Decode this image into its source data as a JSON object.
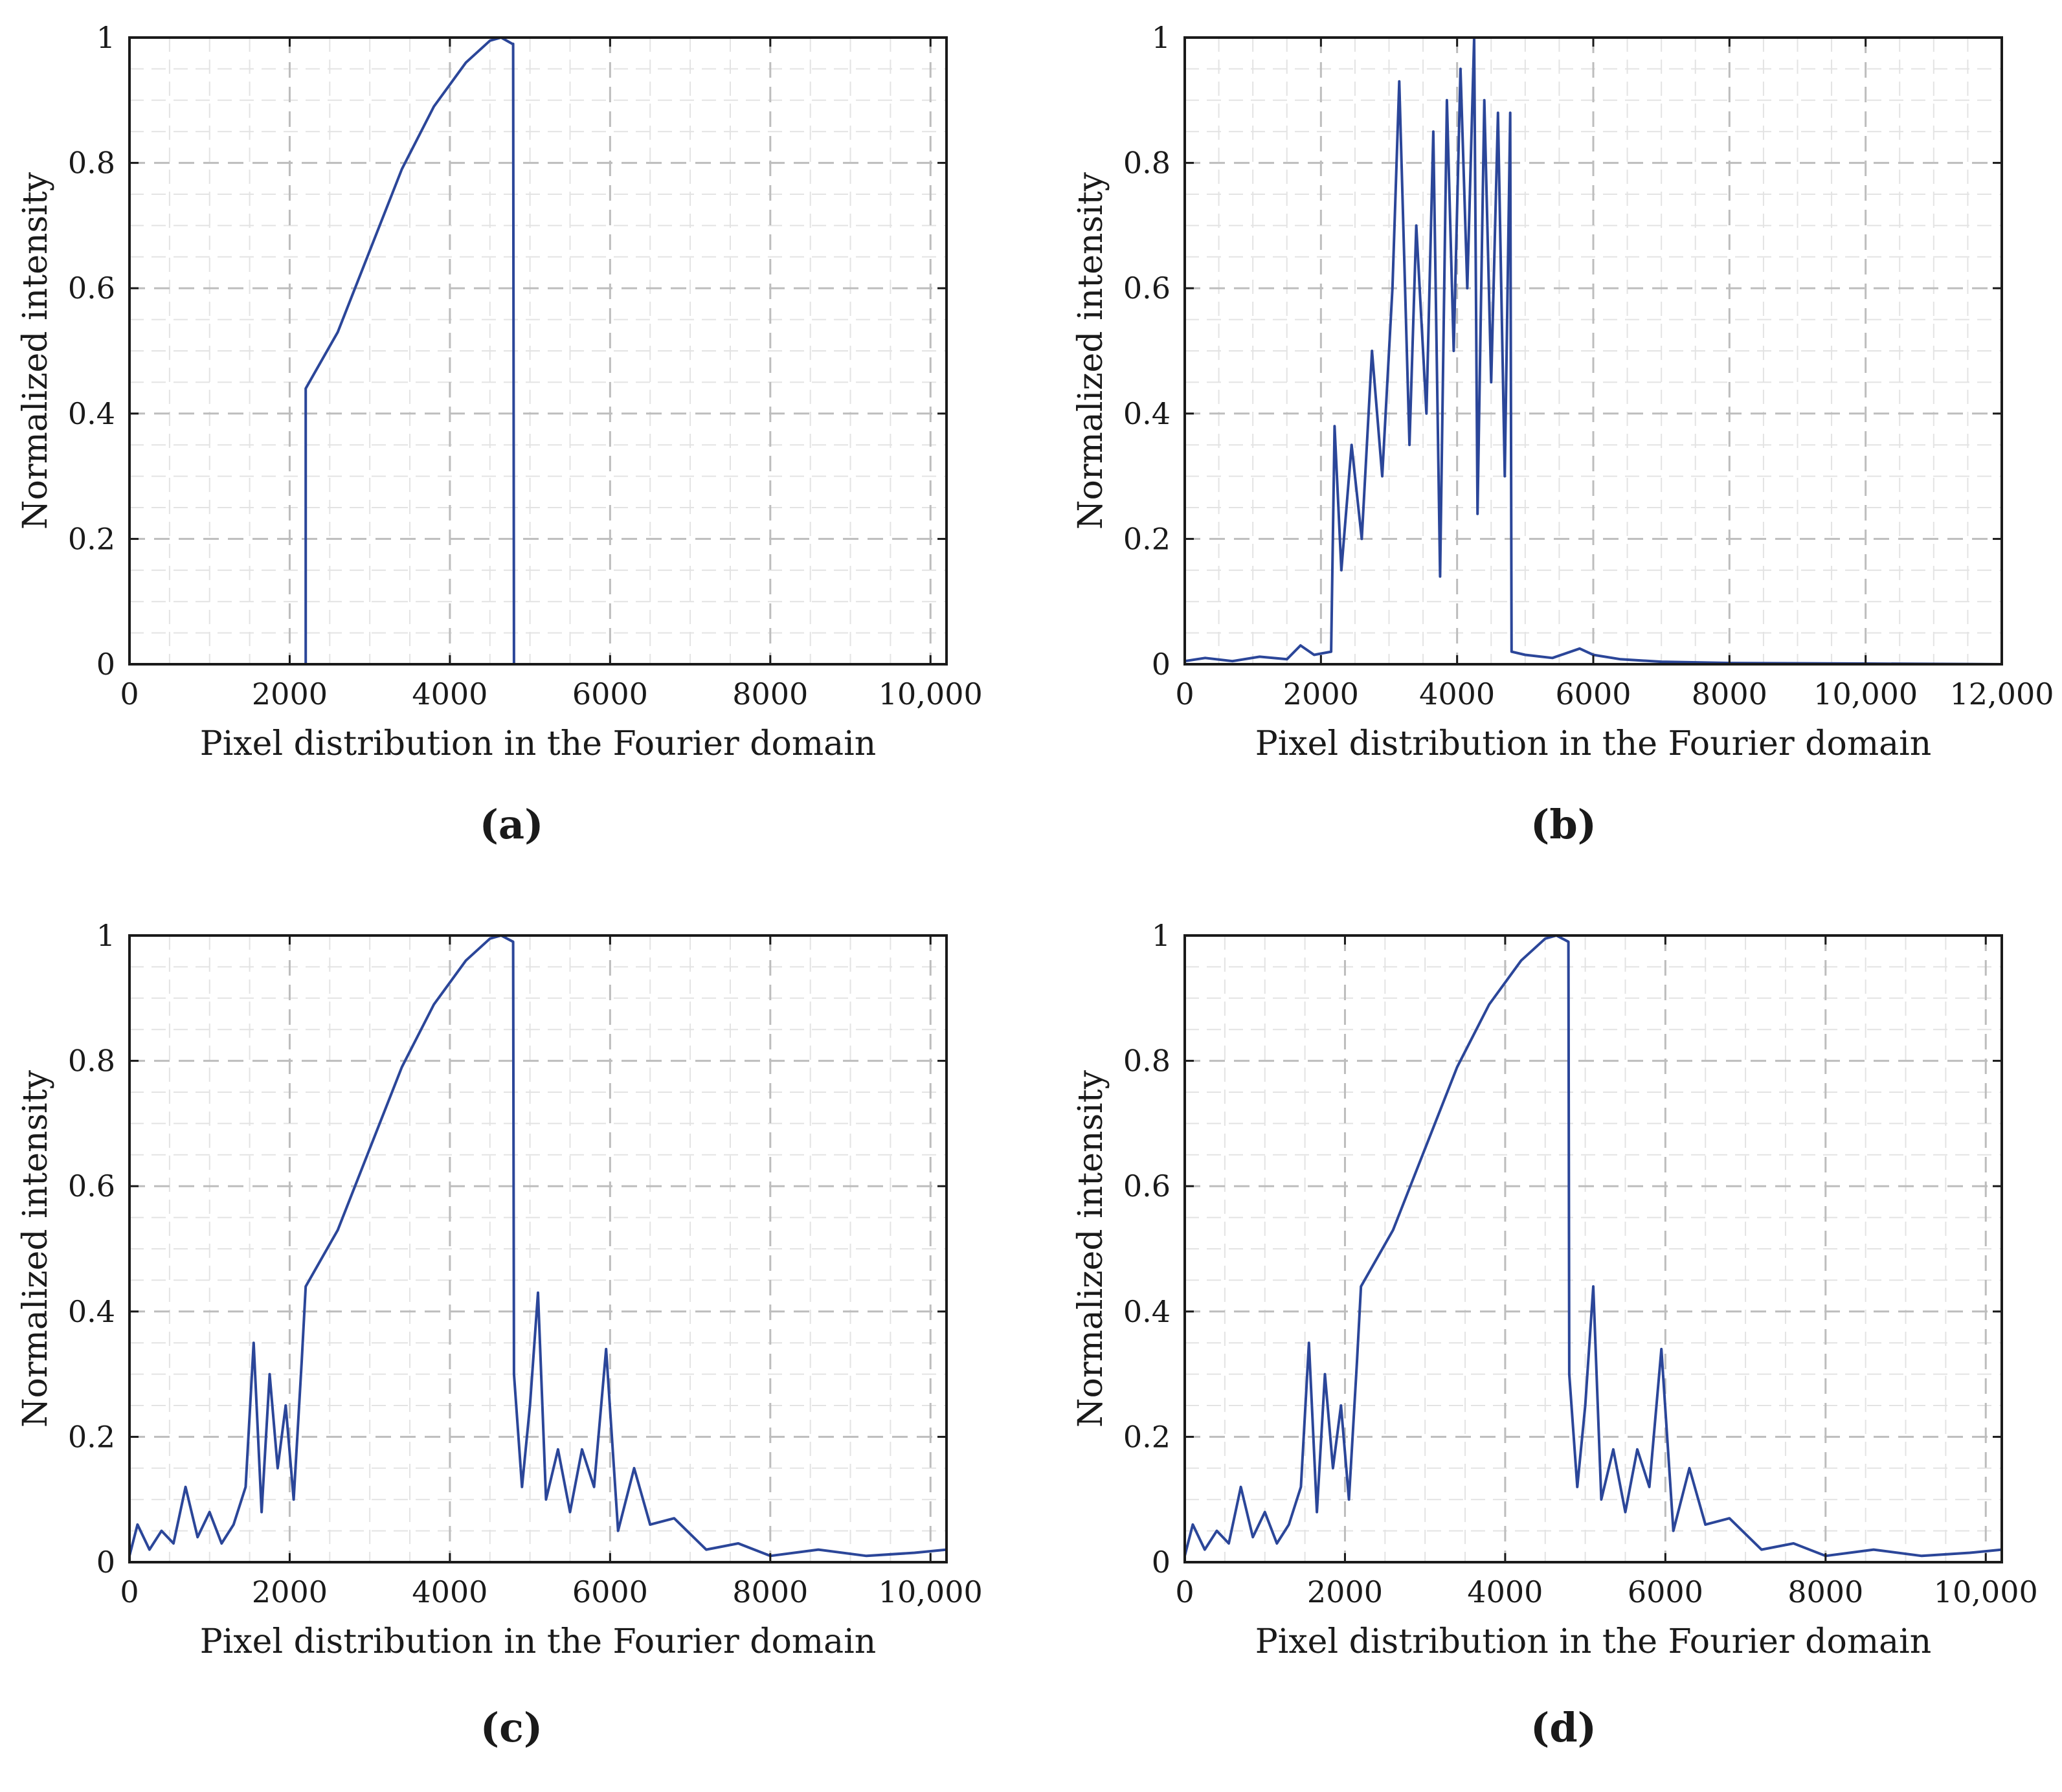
{
  "chart_data": [
    {
      "type": "line",
      "panel_label": "(a)",
      "title": "",
      "xlabel": "Pixel distribution in the Fourier domain",
      "ylabel": "Normalized intensity",
      "xlim": [
        0,
        10200
      ],
      "ylim": [
        0,
        1
      ],
      "xticks": [
        0,
        2000,
        4000,
        6000,
        8000,
        10000
      ],
      "xtick_labels": [
        "0",
        "2000",
        "4000",
        "6000",
        "8000",
        "10,000"
      ],
      "yticks": [
        0,
        0.2,
        0.4,
        0.6,
        0.8,
        1
      ],
      "ytick_labels": [
        "0",
        "0.2",
        "0.4",
        "0.6",
        "0.8",
        "1"
      ],
      "grid": true,
      "color": "#2b4699",
      "series": [
        {
          "name": "intensity",
          "x": [
            0,
            2180,
            2200,
            2200,
            2600,
            3000,
            3400,
            3800,
            4200,
            4500,
            4640,
            4780,
            4790,
            4800,
            10200
          ],
          "y": [
            0,
            0,
            0,
            0.44,
            0.53,
            0.66,
            0.79,
            0.89,
            0.96,
            0.995,
            1.0,
            0.99,
            0.99,
            0,
            0
          ]
        }
      ]
    },
    {
      "type": "line",
      "panel_label": "(b)",
      "title": "",
      "xlabel": "Pixel distribution in the Fourier domain",
      "ylabel": "Normalized intensity",
      "xlim": [
        0,
        12000
      ],
      "ylim": [
        0,
        1
      ],
      "xticks": [
        0,
        2000,
        4000,
        6000,
        8000,
        10000,
        12000
      ],
      "xtick_labels": [
        "0",
        "2000",
        "4000",
        "6000",
        "8000",
        "10,000",
        "12,000"
      ],
      "yticks": [
        0,
        0.2,
        0.4,
        0.6,
        0.8,
        1
      ],
      "ytick_labels": [
        "0",
        "0.2",
        "0.4",
        "0.6",
        "0.8",
        "1"
      ],
      "grid": true,
      "color": "#2b4699",
      "series": [
        {
          "name": "intensity",
          "x": [
            0,
            300,
            700,
            1100,
            1500,
            1700,
            1900,
            2150,
            2200,
            2300,
            2450,
            2600,
            2750,
            2900,
            3050,
            3150,
            3300,
            3400,
            3550,
            3650,
            3750,
            3850,
            3950,
            4050,
            4150,
            4250,
            4300,
            4400,
            4500,
            4600,
            4700,
            4780,
            4800,
            5000,
            5400,
            5800,
            6000,
            6400,
            7000,
            8000,
            10000,
            12000
          ],
          "y": [
            0.005,
            0.01,
            0.005,
            0.012,
            0.008,
            0.03,
            0.015,
            0.02,
            0.38,
            0.15,
            0.35,
            0.2,
            0.5,
            0.3,
            0.6,
            0.93,
            0.35,
            0.7,
            0.4,
            0.85,
            0.14,
            0.9,
            0.5,
            0.95,
            0.6,
            1.0,
            0.24,
            0.9,
            0.45,
            0.88,
            0.3,
            0.88,
            0.02,
            0.015,
            0.01,
            0.025,
            0.015,
            0.008,
            0.004,
            0.002,
            0.001,
            0.0
          ]
        }
      ]
    },
    {
      "type": "line",
      "panel_label": "(c)",
      "title": "",
      "xlabel": "Pixel distribution in the Fourier domain",
      "ylabel": "Normalized intensity",
      "xlim": [
        0,
        10200
      ],
      "ylim": [
        0,
        1
      ],
      "xticks": [
        0,
        2000,
        4000,
        6000,
        8000,
        10000
      ],
      "xtick_labels": [
        "0",
        "2000",
        "4000",
        "6000",
        "8000",
        "10,000"
      ],
      "yticks": [
        0,
        0.2,
        0.4,
        0.6,
        0.8,
        1
      ],
      "ytick_labels": [
        "0",
        "0.2",
        "0.4",
        "0.6",
        "0.8",
        "1"
      ],
      "grid": true,
      "color": "#2b4699",
      "series": [
        {
          "name": "intensity",
          "x": [
            0,
            100,
            250,
            400,
            550,
            700,
            850,
            1000,
            1150,
            1300,
            1450,
            1550,
            1650,
            1750,
            1850,
            1950,
            2050,
            2150,
            2200,
            2600,
            3000,
            3400,
            3800,
            4200,
            4500,
            4640,
            4790,
            4800,
            4900,
            5000,
            5100,
            5200,
            5350,
            5500,
            5650,
            5800,
            5950,
            6100,
            6300,
            6500,
            6800,
            7200,
            7600,
            8000,
            8600,
            9200,
            9800,
            10200
          ],
          "y": [
            0.01,
            0.06,
            0.02,
            0.05,
            0.03,
            0.12,
            0.04,
            0.08,
            0.03,
            0.06,
            0.12,
            0.35,
            0.08,
            0.3,
            0.15,
            0.25,
            0.1,
            0.32,
            0.44,
            0.53,
            0.66,
            0.79,
            0.89,
            0.96,
            0.995,
            1.0,
            0.99,
            0.3,
            0.12,
            0.25,
            0.43,
            0.1,
            0.18,
            0.08,
            0.18,
            0.12,
            0.34,
            0.05,
            0.15,
            0.06,
            0.07,
            0.02,
            0.03,
            0.01,
            0.02,
            0.01,
            0.015,
            0.02
          ]
        }
      ]
    },
    {
      "type": "line",
      "panel_label": "(d)",
      "title": "",
      "xlabel": "Pixel distribution in the Fourier domain",
      "ylabel": "Normalized intensity",
      "xlim": [
        0,
        10200
      ],
      "ylim": [
        0,
        1
      ],
      "xticks": [
        0,
        2000,
        4000,
        6000,
        8000,
        10000
      ],
      "xtick_labels": [
        "0",
        "2000",
        "4000",
        "6000",
        "8000",
        "10,000"
      ],
      "yticks": [
        0,
        0.2,
        0.4,
        0.6,
        0.8,
        1
      ],
      "ytick_labels": [
        "0",
        "0.2",
        "0.4",
        "0.6",
        "0.8",
        "1"
      ],
      "grid": true,
      "color": "#2b4699",
      "series": [
        {
          "name": "intensity",
          "x": [
            0,
            100,
            250,
            400,
            550,
            700,
            850,
            1000,
            1150,
            1300,
            1450,
            1550,
            1650,
            1750,
            1850,
            1950,
            2050,
            2150,
            2200,
            2600,
            3000,
            3400,
            3800,
            4200,
            4500,
            4640,
            4790,
            4800,
            4900,
            5000,
            5100,
            5200,
            5350,
            5500,
            5650,
            5800,
            5950,
            6100,
            6300,
            6500,
            6800,
            7200,
            7600,
            8000,
            8600,
            9200,
            9800,
            10200
          ],
          "y": [
            0.01,
            0.06,
            0.02,
            0.05,
            0.03,
            0.12,
            0.04,
            0.08,
            0.03,
            0.06,
            0.12,
            0.35,
            0.08,
            0.3,
            0.15,
            0.25,
            0.1,
            0.32,
            0.44,
            0.53,
            0.66,
            0.79,
            0.89,
            0.96,
            0.995,
            1.0,
            0.99,
            0.3,
            0.12,
            0.25,
            0.44,
            0.1,
            0.18,
            0.08,
            0.18,
            0.12,
            0.34,
            0.05,
            0.15,
            0.06,
            0.07,
            0.02,
            0.03,
            0.01,
            0.02,
            0.01,
            0.015,
            0.02
          ]
        }
      ]
    }
  ]
}
